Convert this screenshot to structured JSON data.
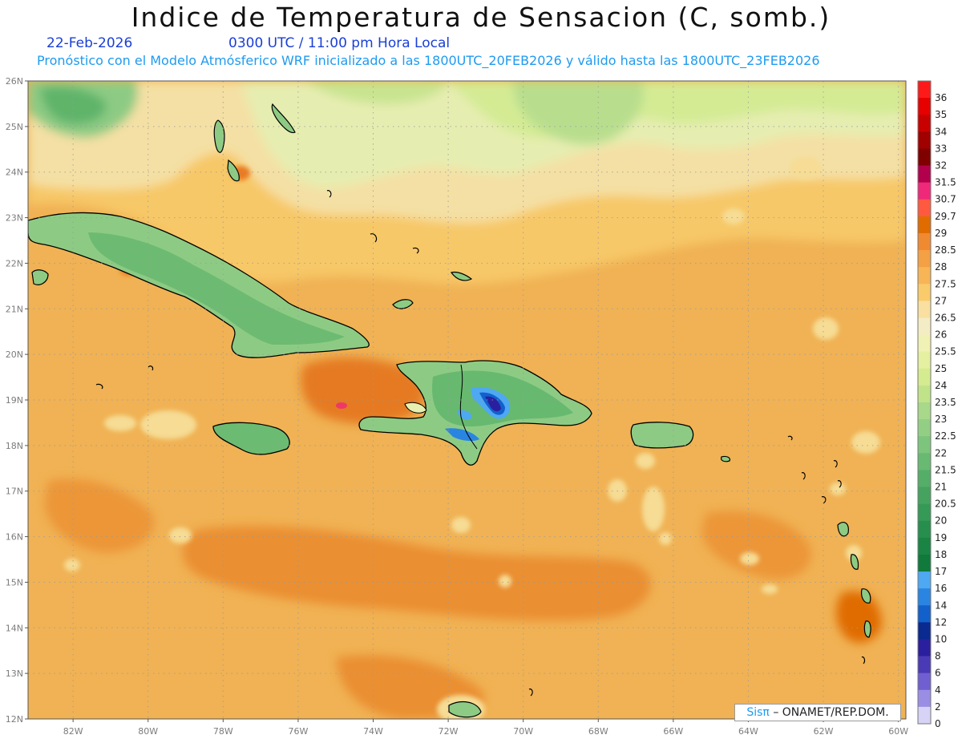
{
  "header": {
    "title": "Indice de Temperatura de Sensacion (C, somb.)",
    "date": "22-Feb-2026",
    "valid_time": "0300 UTC / 11:00 pm Hora Local",
    "description": "Pronóstico con el Modelo Atmósferico WRF inicializado a las 1800UTC_20FEB2026 y válido hasta las  1800UTC_23FEB2026"
  },
  "map": {
    "lat_labels": [
      "26N",
      "25N",
      "24N",
      "23N",
      "22N",
      "21N",
      "20N",
      "19N",
      "18N",
      "17N",
      "16N",
      "15N",
      "14N",
      "13N",
      "12N"
    ],
    "lon_labels": [
      "82W",
      "80W",
      "78W",
      "76W",
      "74W",
      "72W",
      "70W",
      "68W",
      "66W",
      "64W",
      "62W",
      "60W"
    ],
    "lat_range": [
      12,
      26
    ],
    "lon_range": [
      -83.2,
      -59.8
    ],
    "grid": "dotted",
    "colors": {
      "ocean_dominant": "#f0b254",
      "land_green": "#4fae6a",
      "warm_pool": "#e57a21",
      "cold_core": "#2e2cb0"
    }
  },
  "colorbar": {
    "levels": [
      {
        "label": "36",
        "color": "#ff1a1a"
      },
      {
        "label": "35",
        "color": "#e60000"
      },
      {
        "label": "34",
        "color": "#c80000"
      },
      {
        "label": "33",
        "color": "#a00000"
      },
      {
        "label": "32",
        "color": "#800000"
      },
      {
        "label": "31.5",
        "color": "#b3004d"
      },
      {
        "label": "30.7",
        "color": "#f0287a"
      },
      {
        "label": "29.7",
        "color": "#ff5a40"
      },
      {
        "label": "29",
        "color": "#e06c00"
      },
      {
        "label": "28.5",
        "color": "#f08a30"
      },
      {
        "label": "28",
        "color": "#f4a045"
      },
      {
        "label": "27.5",
        "color": "#f7b556"
      },
      {
        "label": "27",
        "color": "#f9cb6a"
      },
      {
        "label": "26.5",
        "color": "#f9e0a0"
      },
      {
        "label": "26",
        "color": "#f4ecc4"
      },
      {
        "label": "25.5",
        "color": "#f0f1b4"
      },
      {
        "label": "25",
        "color": "#e5f0a0"
      },
      {
        "label": "24",
        "color": "#d5eb90"
      },
      {
        "label": "23.5",
        "color": "#c0e38a"
      },
      {
        "label": "23",
        "color": "#a8d88a"
      },
      {
        "label": "22.5",
        "color": "#92cf85"
      },
      {
        "label": "22",
        "color": "#7dc57c"
      },
      {
        "label": "21.5",
        "color": "#68ba72"
      },
      {
        "label": "21",
        "color": "#55ae68"
      },
      {
        "label": "20.5",
        "color": "#45a35f"
      },
      {
        "label": "20",
        "color": "#369a57"
      },
      {
        "label": "19",
        "color": "#268f4d"
      },
      {
        "label": "18",
        "color": "#1a8444"
      },
      {
        "label": "17",
        "color": "#0f7a3b"
      },
      {
        "label": "16",
        "color": "#4ea8f2"
      },
      {
        "label": "14",
        "color": "#2a85e2"
      },
      {
        "label": "12",
        "color": "#1260cc"
      },
      {
        "label": "10",
        "color": "#0a2a90"
      },
      {
        "label": "8",
        "color": "#2a1f9e"
      },
      {
        "label": "6",
        "color": "#4a3ab6"
      },
      {
        "label": "4",
        "color": "#6f5fd0"
      },
      {
        "label": "2",
        "color": "#9a8ee4"
      },
      {
        "label": "0",
        "color": "#d6d3f6"
      }
    ]
  },
  "credit": {
    "sis": "Sisπ",
    "org": "– ONAMET/REP.DOM."
  }
}
